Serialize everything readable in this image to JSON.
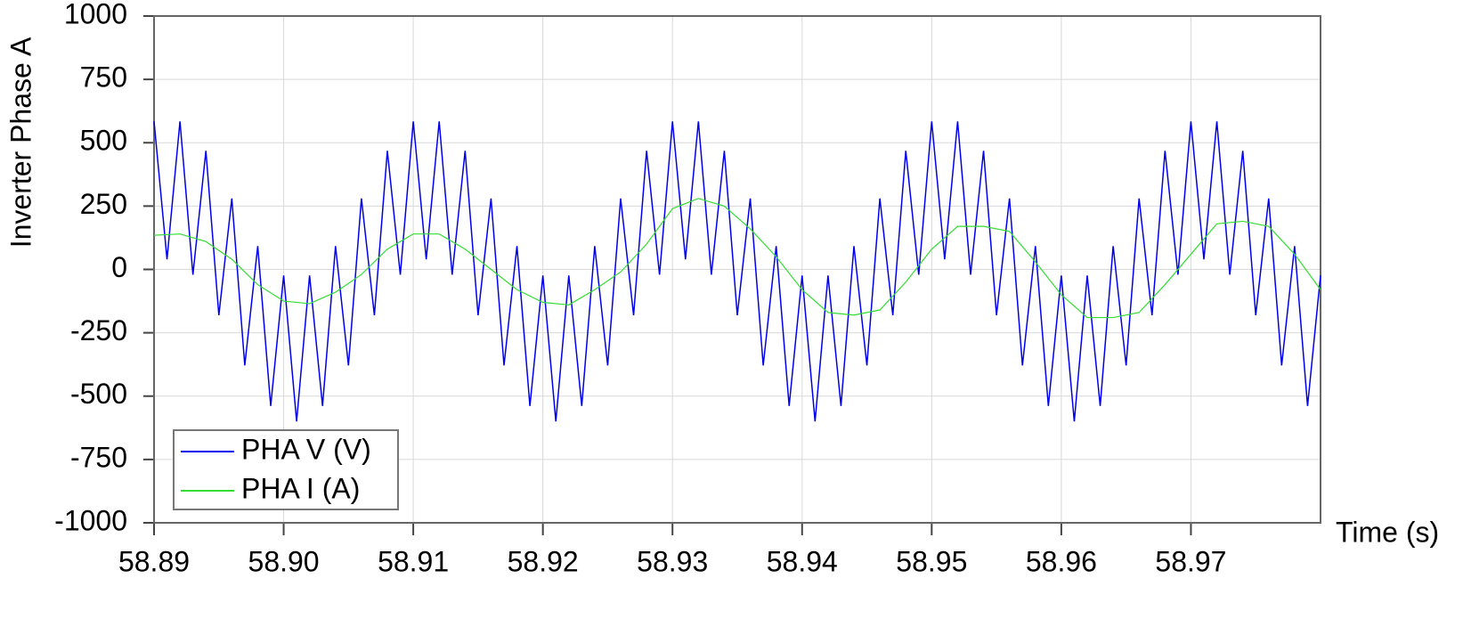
{
  "chart_data": {
    "type": "line",
    "y_label": "Inverter Phase A",
    "x_label": "Time (s)",
    "xlim": [
      58.89,
      58.98
    ],
    "xticks": [
      {
        "value": 58.89,
        "label": "58.89"
      },
      {
        "value": 58.9,
        "label": "58.90"
      },
      {
        "value": 58.91,
        "label": "58.91"
      },
      {
        "value": 58.92,
        "label": "58.92"
      },
      {
        "value": 58.93,
        "label": "58.93"
      },
      {
        "value": 58.94,
        "label": "58.94"
      },
      {
        "value": 58.95,
        "label": "58.95"
      },
      {
        "value": 58.96,
        "label": "58.96"
      },
      {
        "value": 58.97,
        "label": "58.97"
      }
    ],
    "ylim": [
      -1000,
      1000
    ],
    "yticks": [
      -1000,
      -750,
      -500,
      -250,
      0,
      250,
      500,
      750,
      1000
    ],
    "grid": true,
    "legend": "lower left",
    "series": [
      {
        "name": "PHA V (V)",
        "color": "#0000ee",
        "x": [
          58.89,
          58.891,
          58.892,
          58.893,
          58.894,
          58.895,
          58.896,
          58.897,
          58.898,
          58.899,
          58.9,
          58.901,
          58.902,
          58.903,
          58.904,
          58.905,
          58.906,
          58.907,
          58.908,
          58.909,
          58.91,
          58.911,
          58.912,
          58.913,
          58.914,
          58.915,
          58.916,
          58.917,
          58.918,
          58.919,
          58.92,
          58.921,
          58.922,
          58.923,
          58.924,
          58.925,
          58.926,
          58.927,
          58.928,
          58.929,
          58.93,
          58.931,
          58.932,
          58.933,
          58.934,
          58.935,
          58.936,
          58.937,
          58.938,
          58.939,
          58.94,
          58.941,
          58.942,
          58.943,
          58.944,
          58.945,
          58.946,
          58.947,
          58.948,
          58.949,
          58.95,
          58.951,
          58.952,
          58.953,
          58.954,
          58.955,
          58.956,
          58.957,
          58.958,
          58.959,
          58.96,
          58.961,
          58.962,
          58.963,
          58.964,
          58.965,
          58.966,
          58.967,
          58.968,
          58.969,
          58.97,
          58.971,
          58.972,
          58.973,
          58.974,
          58.975,
          58.976,
          58.977,
          58.978,
          58.979,
          58.98
        ],
        "values": [
          584,
          40,
          584,
          -21,
          468,
          -181,
          280,
          -379,
          92,
          -539,
          -24,
          -600,
          -24,
          -539,
          92,
          -379,
          280,
          -181,
          468,
          -21,
          584,
          40,
          584,
          -21,
          468,
          -181,
          280,
          -379,
          92,
          -539,
          -24,
          -600,
          -24,
          -539,
          92,
          -379,
          280,
          -181,
          468,
          -21,
          584,
          40,
          584,
          -21,
          468,
          -181,
          280,
          -379,
          92,
          -539,
          -24,
          -600,
          -24,
          -539,
          92,
          -379,
          280,
          -181,
          468,
          -21,
          584,
          40,
          584,
          -21,
          468,
          -181,
          280,
          -379,
          92,
          -539,
          -24,
          -600,
          -24,
          -539,
          92,
          -379,
          280,
          -181,
          468,
          -21,
          584,
          40,
          584,
          -21,
          468,
          -181,
          280,
          -379,
          92,
          -539,
          -24
        ]
      },
      {
        "name": "PHA I (A)",
        "color": "#33dd33",
        "x": [
          58.89,
          58.892,
          58.894,
          58.896,
          58.898,
          58.9,
          58.902,
          58.904,
          58.906,
          58.908,
          58.91,
          58.912,
          58.914,
          58.916,
          58.918,
          58.92,
          58.922,
          58.924,
          58.926,
          58.928,
          58.93,
          58.932,
          58.934,
          58.936,
          58.938,
          58.94,
          58.942,
          58.944,
          58.946,
          58.948,
          58.95,
          58.952,
          58.954,
          58.956,
          58.958,
          58.96,
          58.962,
          58.964,
          58.966,
          58.968,
          58.97,
          58.972,
          58.974,
          58.976,
          58.978,
          58.98
        ],
        "values": [
          135,
          140,
          110,
          40,
          -60,
          -125,
          -135,
          -90,
          -20,
          80,
          140,
          140,
          80,
          0,
          -80,
          -130,
          -140,
          -80,
          -10,
          100,
          240,
          280,
          250,
          160,
          50,
          -80,
          -170,
          -180,
          -160,
          -50,
          80,
          170,
          170,
          150,
          30,
          -100,
          -190,
          -190,
          -170,
          -60,
          60,
          180,
          190,
          170,
          60,
          -80
        ]
      }
    ]
  }
}
